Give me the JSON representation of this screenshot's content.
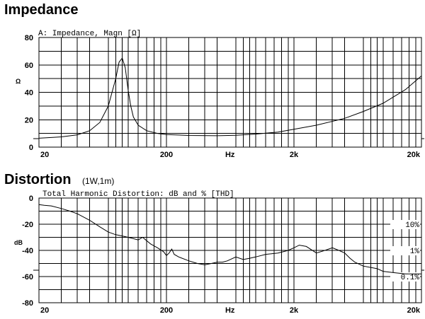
{
  "chart_data": [
    {
      "type": "line",
      "title": "Impedance",
      "label": "A: Impedance, Magn [Ω]",
      "ylabel": "Ω",
      "xlabel": "Hz",
      "xscale": "log",
      "xlim": [
        20,
        20000
      ],
      "ylim": [
        0,
        80
      ],
      "grid": true,
      "x_ticks": [
        20,
        200,
        2000,
        20000
      ],
      "x_tick_labels": [
        "20",
        "200",
        "2k",
        "20k"
      ],
      "y_ticks": [
        0,
        20,
        40,
        60,
        80
      ],
      "y_tick_labels": [
        "0",
        "20",
        "40",
        "60",
        "80"
      ],
      "reference_marker_y": 6.3,
      "series": [
        {
          "x": [
            20,
            25,
            30,
            40,
            50,
            60,
            70,
            80,
            85,
            90,
            95,
            100,
            105,
            110,
            120,
            140,
            170,
            200,
            300,
            500,
            700,
            1000,
            1500,
            2000,
            3000,
            5000,
            7000,
            10000,
            15000,
            20000
          ],
          "y": [
            6.5,
            7,
            7.5,
            9,
            12,
            18,
            30,
            50,
            62,
            65,
            58,
            42,
            30,
            22,
            16,
            12,
            10,
            9.2,
            8.5,
            8.3,
            8.6,
            9.5,
            11,
            13,
            16,
            21,
            26,
            32,
            42,
            52
          ]
        }
      ]
    },
    {
      "type": "line",
      "title": "Distortion",
      "subtitle": "(1W,1m)",
      "label": "Total Harmonic Distortion: dB and % [THD]",
      "ylabel": "dB",
      "xlabel": "Hz",
      "xscale": "log",
      "xlim": [
        20,
        20000
      ],
      "ylim": [
        -80,
        0
      ],
      "grid": true,
      "x_ticks": [
        20,
        200,
        2000,
        20000
      ],
      "x_tick_labels": [
        "20",
        "200",
        "2k",
        "20k"
      ],
      "y_ticks": [
        0,
        -20,
        -40,
        -60,
        -80
      ],
      "y_tick_labels": [
        "0",
        "-20",
        "-40",
        "-60",
        "-80"
      ],
      "percent_labels": [
        {
          "text": "10%",
          "db": -20
        },
        {
          "text": "1%",
          "db": -40
        },
        {
          "text": "0.1%",
          "db": -60
        }
      ],
      "reference_marker_y": -55,
      "series": [
        {
          "x": [
            20,
            22,
            25,
            30,
            35,
            40,
            50,
            60,
            70,
            80,
            90,
            100,
            110,
            120,
            130,
            150,
            170,
            190,
            200,
            210,
            220,
            230,
            250,
            300,
            350,
            400,
            450,
            500,
            550,
            600,
            700,
            800,
            900,
            1000,
            1200,
            1500,
            1800,
            2000,
            2200,
            2500,
            3000,
            3500,
            4000,
            4500,
            5000,
            5500,
            6000,
            7000,
            8000,
            9000,
            10000,
            12000,
            15000,
            17000,
            20000
          ],
          "y": [
            -5,
            -5.5,
            -6,
            -8,
            -10,
            -12,
            -17,
            -22,
            -26,
            -28,
            -29,
            -30,
            -31,
            -32,
            -30,
            -35,
            -38,
            -41,
            -44,
            -42,
            -39,
            -43,
            -45,
            -48,
            -50,
            -51,
            -50,
            -49,
            -49,
            -48,
            -45,
            -47,
            -46,
            -45,
            -43,
            -42,
            -40,
            -38,
            -36,
            -37,
            -42,
            -40,
            -38,
            -40,
            -42,
            -46,
            -49,
            -52,
            -53,
            -54,
            -56,
            -57,
            -58,
            -58,
            -58
          ]
        }
      ]
    }
  ]
}
